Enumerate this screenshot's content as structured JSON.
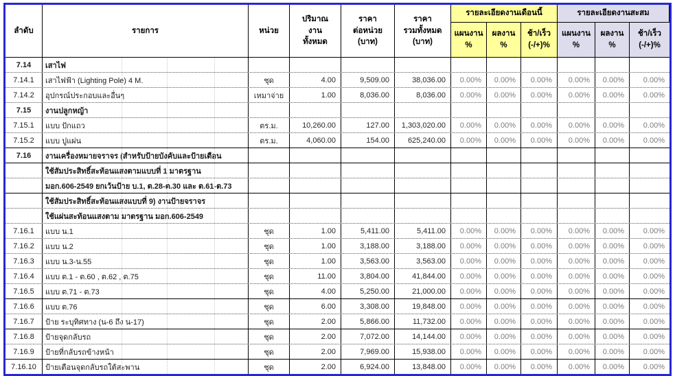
{
  "colors": {
    "outer_border": "#2626D8",
    "month_group_bg": "#FFFF9C",
    "cumulative_group_bg": "#DCDCEC",
    "percent_text": "#7b7b7b"
  },
  "table": {
    "header": {
      "col_seq": "ลำดับ",
      "col_item": "รายการ",
      "col_unit": "หน่วย",
      "col_qty": [
        "ปริมาณ",
        "งาน",
        "ทั้งหมด"
      ],
      "col_unit_price": [
        "ราคา",
        "ต่อหน่วย",
        "(บาท)"
      ],
      "col_total_price": [
        "ราคา",
        "รวมทั้งหมด",
        "(บาท)"
      ],
      "group_month": "รายละเอียดงานเดือนนี้",
      "group_cumulative": "รายละเอียดงานสะสม",
      "sub_plan": [
        "แผนงาน",
        "%"
      ],
      "sub_actual": [
        "ผลงาน",
        "%"
      ],
      "sub_diff": [
        "ช้า/เร็ว",
        "(-/+)%"
      ]
    },
    "rows": [
      {
        "seq": "7.14",
        "item": "เสาไฟ",
        "unit": "",
        "qty": "",
        "unit_price": "",
        "total_price": "",
        "pct": [],
        "section": true,
        "solid": false
      },
      {
        "seq": "7.14.1",
        "item": "เสาไฟฟ้า (Lighting Pole) 4 M.",
        "unit": "ชุด",
        "qty": "4.00",
        "unit_price": "9,509.00",
        "total_price": "38,036.00",
        "pct": [
          "0.00%",
          "0.00%",
          "0.00%",
          "0.00%",
          "0.00%",
          "0.00%"
        ],
        "section": false,
        "solid": false
      },
      {
        "seq": "7.14.2",
        "item": "อุปกรณ์ประกอบและอื่นๆ",
        "unit": "เหมาจ่าย",
        "qty": "1.00",
        "unit_price": "8,036.00",
        "total_price": "8,036.00",
        "pct": [
          "0.00%",
          "0.00%",
          "0.00%",
          "0.00%",
          "0.00%",
          "0.00%"
        ],
        "section": false,
        "solid": false
      },
      {
        "seq": "7.15",
        "item": "งานปลูกหญ้า",
        "unit": "",
        "qty": "",
        "unit_price": "",
        "total_price": "",
        "pct": [],
        "section": true,
        "solid": false
      },
      {
        "seq": "7.15.1",
        "item": "แบบ ปักแถว",
        "unit": "ตร.ม.",
        "qty": "10,260.00",
        "unit_price": "127.00",
        "total_price": "1,303,020.00",
        "pct": [
          "0.00%",
          "0.00%",
          "0.00%",
          "0.00%",
          "0.00%",
          "0.00%"
        ],
        "section": false,
        "solid": false
      },
      {
        "seq": "7.15.2",
        "item": "แบบ ปูแผ่น",
        "unit": "ตร.ม.",
        "qty": "4,060.00",
        "unit_price": "154.00",
        "total_price": "625,240.00",
        "pct": [
          "0.00%",
          "0.00%",
          "0.00%",
          "0.00%",
          "0.00%",
          "0.00%"
        ],
        "section": false,
        "solid": true
      },
      {
        "seq": "7.16",
        "item": "งานเครื่องหมายจราจร (สำหรับป้ายบังคับและป้ายเตือน",
        "unit": "",
        "qty": "",
        "unit_price": "",
        "total_price": "",
        "pct": [],
        "section": true,
        "solid": true
      },
      {
        "seq": "",
        "item": "ใช้สัมประสิทธิ์สะท้อนแสงตามแบบที่ 1 มาตรฐาน",
        "unit": "",
        "qty": "",
        "unit_price": "",
        "total_price": "",
        "pct": [],
        "section": true,
        "solid": false
      },
      {
        "seq": "",
        "item": "มอก.606-2549 ยกเว้นป้าย บ.1, ต.28-ต.30 และ ต.61-ต.73",
        "unit": "",
        "qty": "",
        "unit_price": "",
        "total_price": "",
        "pct": [],
        "section": true,
        "solid": true
      },
      {
        "seq": "",
        "item": "ใช้สัมประสิทธิ์สะท้อนแสงแบบที่ 9) งานป้ายจราจร",
        "unit": "",
        "qty": "",
        "unit_price": "",
        "total_price": "",
        "pct": [],
        "section": true,
        "solid": false
      },
      {
        "seq": "",
        "item": "ใช้แผ่นสะท้อนแสงตาม มาตรฐาน มอก.606-2549",
        "unit": "",
        "qty": "",
        "unit_price": "",
        "total_price": "",
        "pct": [],
        "section": true,
        "solid": false
      },
      {
        "seq": "7.16.1",
        "item": "แบบ น.1",
        "unit": "ชุด",
        "qty": "1.00",
        "unit_price": "5,411.00",
        "total_price": "5,411.00",
        "pct": [
          "0.00%",
          "0.00%",
          "0.00%",
          "0.00%",
          "0.00%",
          "0.00%"
        ],
        "section": false,
        "solid": false
      },
      {
        "seq": "7.16.2",
        "item": "แบบ น.2",
        "unit": "ชุด",
        "qty": "1.00",
        "unit_price": "3,188.00",
        "total_price": "3,188.00",
        "pct": [
          "0.00%",
          "0.00%",
          "0.00%",
          "0.00%",
          "0.00%",
          "0.00%"
        ],
        "section": false,
        "solid": false
      },
      {
        "seq": "7.16.3",
        "item": "แบบ น.3-น.55",
        "unit": "ชุด",
        "qty": "1.00",
        "unit_price": "3,563.00",
        "total_price": "3,563.00",
        "pct": [
          "0.00%",
          "0.00%",
          "0.00%",
          "0.00%",
          "0.00%",
          "0.00%"
        ],
        "section": false,
        "solid": false
      },
      {
        "seq": "7.16.4",
        "item": "แบบ ต.1 - ต.60 , ต.62 , ต.75",
        "unit": "ชุด",
        "qty": "11.00",
        "unit_price": "3,804.00",
        "total_price": "41,844.00",
        "pct": [
          "0.00%",
          "0.00%",
          "0.00%",
          "0.00%",
          "0.00%",
          "0.00%"
        ],
        "section": false,
        "solid": false
      },
      {
        "seq": "7.16.5",
        "item": "แบบ ต.71 - ต.73",
        "unit": "ชุด",
        "qty": "4.00",
        "unit_price": "5,250.00",
        "total_price": "21,000.00",
        "pct": [
          "0.00%",
          "0.00%",
          "0.00%",
          "0.00%",
          "0.00%",
          "0.00%"
        ],
        "section": false,
        "solid": true
      },
      {
        "seq": "7.16.6",
        "item": "แบบ ต.76",
        "unit": "ชุด",
        "qty": "6.00",
        "unit_price": "3,308.00",
        "total_price": "19,848.00",
        "pct": [
          "0.00%",
          "0.00%",
          "0.00%",
          "0.00%",
          "0.00%",
          "0.00%"
        ],
        "section": false,
        "solid": false
      },
      {
        "seq": "7.16.7",
        "item": "ป้าย ระบุทิศทาง (น-6 ถึง น-17)",
        "unit": "ชุด",
        "qty": "2.00",
        "unit_price": "5,866.00",
        "total_price": "11,732.00",
        "pct": [
          "0.00%",
          "0.00%",
          "0.00%",
          "0.00%",
          "0.00%",
          "0.00%"
        ],
        "section": false,
        "solid": true
      },
      {
        "seq": "7.16.8",
        "item": "ป้ายจุดกลับรถ",
        "unit": "ชุด",
        "qty": "2.00",
        "unit_price": "7,072.00",
        "total_price": "14,144.00",
        "pct": [
          "0.00%",
          "0.00%",
          "0.00%",
          "0.00%",
          "0.00%",
          "0.00%"
        ],
        "section": false,
        "solid": false
      },
      {
        "seq": "7.16.9",
        "item": "ป้ายที่กลับรถข้างหน้า",
        "unit": "ชุด",
        "qty": "2.00",
        "unit_price": "7,969.00",
        "total_price": "15,938.00",
        "pct": [
          "0.00%",
          "0.00%",
          "0.00%",
          "0.00%",
          "0.00%",
          "0.00%"
        ],
        "section": false,
        "solid": true
      },
      {
        "seq": "7.16.10",
        "item": "ป้ายเตือนจุดกลับรถใต้สะพาน",
        "unit": "ชุด",
        "qty": "2.00",
        "unit_price": "6,924.00",
        "total_price": "13,848.00",
        "pct": [
          "0.00%",
          "0.00%",
          "0.00%",
          "0.00%",
          "0.00%",
          "0.00%"
        ],
        "section": false,
        "solid": false
      }
    ]
  }
}
